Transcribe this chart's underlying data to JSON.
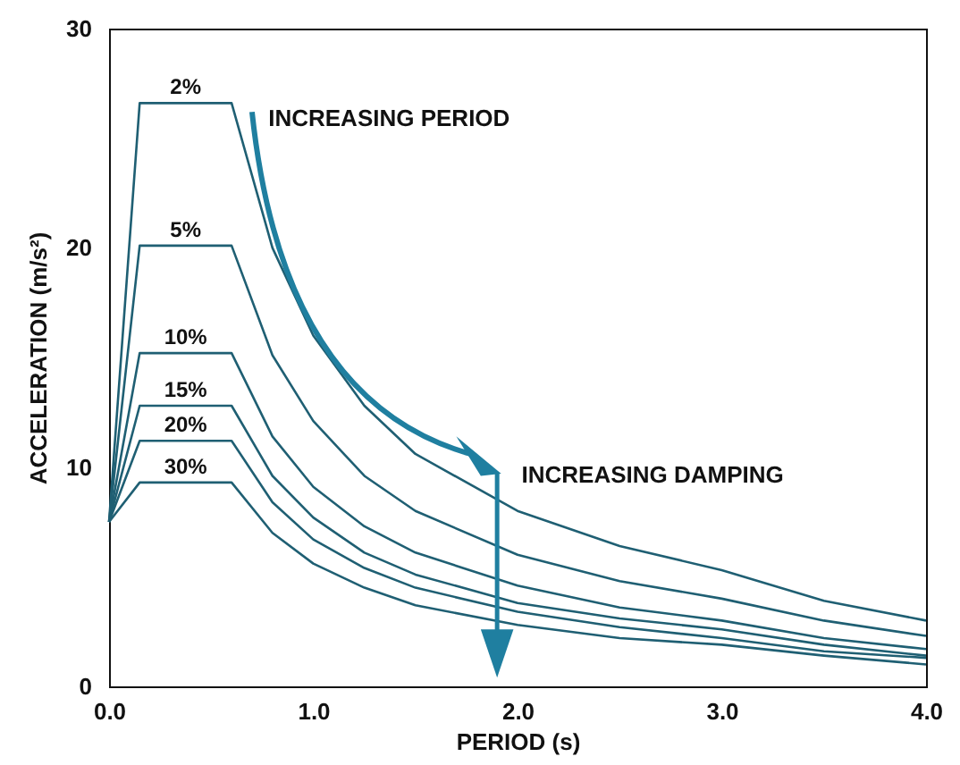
{
  "chart_data": {
    "type": "line",
    "xlabel": "PERIOD (s)",
    "ylabel": "ACCELERATION (m/s²)",
    "x": [
      0,
      0.15,
      0.6,
      0.8,
      1.0,
      1.25,
      1.5,
      2.0,
      2.5,
      3.0,
      3.5,
      4.0
    ],
    "series": [
      {
        "name": "2%",
        "color": "#1f5f73",
        "values": [
          7.5,
          26.6,
          26.6,
          20.0,
          16.0,
          12.8,
          10.6,
          8.0,
          6.4,
          5.3,
          3.9,
          3.0
        ]
      },
      {
        "name": "5%",
        "color": "#1f5f73",
        "values": [
          7.5,
          20.1,
          20.1,
          15.1,
          12.1,
          9.6,
          8.0,
          6.0,
          4.8,
          4.0,
          3.0,
          2.3
        ]
      },
      {
        "name": "10%",
        "color": "#1f5f73",
        "values": [
          7.5,
          15.2,
          15.2,
          11.4,
          9.1,
          7.3,
          6.1,
          4.6,
          3.6,
          3.0,
          2.2,
          1.7
        ]
      },
      {
        "name": "15%",
        "color": "#1f5f73",
        "values": [
          7.5,
          12.8,
          12.8,
          9.6,
          7.7,
          6.1,
          5.1,
          3.8,
          3.1,
          2.6,
          1.9,
          1.4
        ]
      },
      {
        "name": "20%",
        "color": "#1f5f73",
        "values": [
          7.5,
          11.2,
          11.2,
          8.4,
          6.7,
          5.4,
          4.5,
          3.4,
          2.7,
          2.2,
          1.6,
          1.3
        ]
      },
      {
        "name": "30%",
        "color": "#1f5f73",
        "values": [
          7.5,
          9.3,
          9.3,
          7.0,
          5.6,
          4.5,
          3.7,
          2.8,
          2.2,
          1.9,
          1.4,
          1.0
        ]
      }
    ],
    "xlim": [
      0,
      4
    ],
    "xticks": [
      {
        "value": 0,
        "label": "0.0"
      },
      {
        "value": 1,
        "label": "1.0"
      },
      {
        "value": 2,
        "label": "2.0"
      },
      {
        "value": 3,
        "label": "3.0"
      },
      {
        "value": 4,
        "label": "4.0"
      }
    ],
    "ylim": [
      0,
      30
    ],
    "yticks": [
      0,
      10,
      20,
      30
    ],
    "annotations": [
      "INCREASING PERIOD",
      "INCREASING DAMPING"
    ],
    "grid": false,
    "marker": "none",
    "line_style": "solid"
  }
}
